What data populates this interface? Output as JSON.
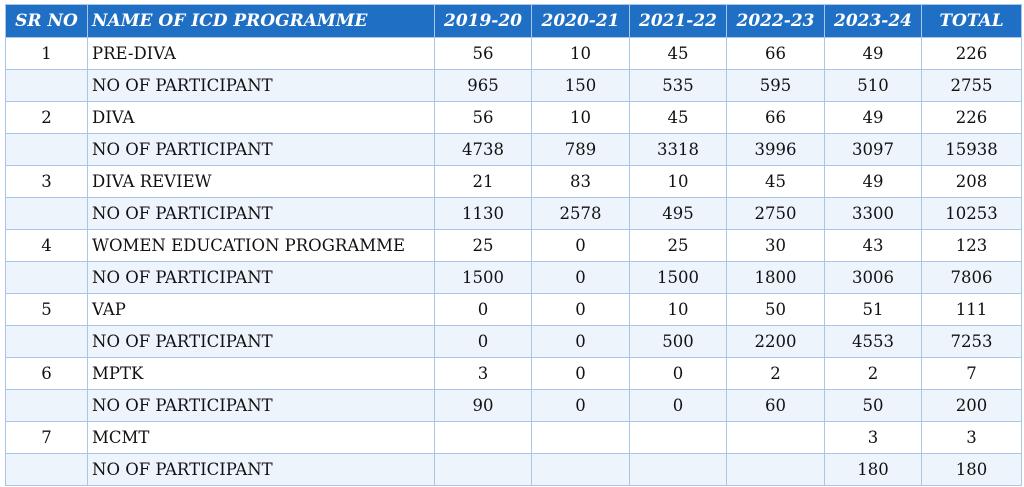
{
  "table": {
    "headers": [
      "SR NO",
      "NAME OF ICD PROGRAMME",
      "2019-20",
      "2020-21",
      "2021-22",
      "2022-23",
      "2023-24",
      "TOTAL"
    ],
    "rows": [
      [
        "1",
        "PRE-DIVA",
        "56",
        "10",
        "45",
        "66",
        "49",
        "226"
      ],
      [
        "",
        "NO OF PARTICIPANT",
        "965",
        "150",
        "535",
        "595",
        "510",
        "2755"
      ],
      [
        "2",
        "DIVA",
        "56",
        "10",
        "45",
        "66",
        "49",
        "226"
      ],
      [
        "",
        "NO OF PARTICIPANT",
        "4738",
        "789",
        "3318",
        "3996",
        "3097",
        "15938"
      ],
      [
        "3",
        "DIVA REVIEW",
        "21",
        "83",
        "10",
        "45",
        "49",
        "208"
      ],
      [
        "",
        "NO OF PARTICIPANT",
        "1130",
        "2578",
        "495",
        "2750",
        "3300",
        "10253"
      ],
      [
        "4",
        "WOMEN EDUCATION PROGRAMME",
        "25",
        "0",
        "25",
        "30",
        "43",
        "123"
      ],
      [
        "",
        "NO OF PARTICIPANT",
        "1500",
        "0",
        "1500",
        "1800",
        "3006",
        "7806"
      ],
      [
        "5",
        "VAP",
        "0",
        "0",
        "10",
        "50",
        "51",
        "111"
      ],
      [
        "",
        "NO OF PARTICIPANT",
        "0",
        "0",
        "500",
        "2200",
        "4553",
        "7253"
      ],
      [
        "6",
        "MPTK",
        "3",
        "0",
        "0",
        "2",
        "2",
        "7"
      ],
      [
        "",
        "NO OF PARTICIPANT",
        "90",
        "0",
        "0",
        "60",
        "50",
        "200"
      ],
      [
        "7",
        "MCMT",
        "",
        "",
        "",
        "",
        "3",
        "3"
      ],
      [
        "",
        "NO OF PARTICIPANT",
        "",
        "",
        "",
        "",
        "180",
        "180"
      ]
    ]
  }
}
